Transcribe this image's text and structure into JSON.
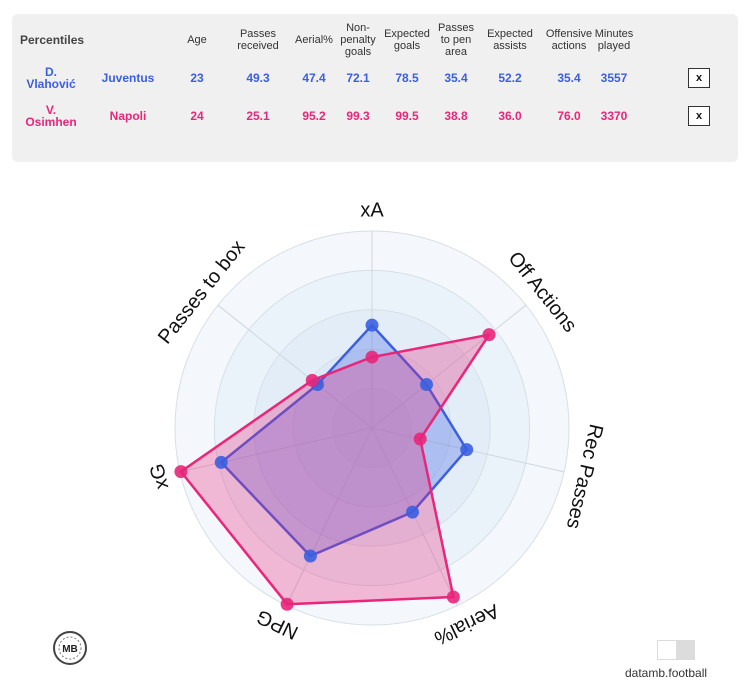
{
  "table": {
    "title": "Percentiles",
    "headers": [
      "Age",
      "Passes\nreceived",
      "Aerial%",
      "Non-\npenalty\ngoals",
      "Expected\ngoals",
      "Passes\nto pen\narea",
      "Expected\nassists",
      "Offensive\nactions",
      "Minutes\nplayed"
    ],
    "rows": [
      {
        "player": "D.\nVlahović",
        "team": "Juventus",
        "values": [
          "23",
          "49.3",
          "47.4",
          "72.1",
          "78.5",
          "35.4",
          "52.2",
          "35.4",
          "3557"
        ],
        "remove": "x",
        "color": "#3a5fe0"
      },
      {
        "player": "V.\nOsimhen",
        "team": "Napoli",
        "values": [
          "24",
          "25.1",
          "95.2",
          "99.3",
          "99.5",
          "38.8",
          "36.0",
          "76.0",
          "3370"
        ],
        "remove": "x",
        "color": "#e8267a"
      }
    ]
  },
  "chart_data": {
    "type": "radar",
    "axes": [
      "xA",
      "Off Actions",
      "Rec Passes",
      "Aerial%",
      "NPG",
      "xG",
      "Passes to box"
    ],
    "range": [
      0,
      100
    ],
    "series": [
      {
        "name": "D. Vlahović",
        "color": "#3a5fe0",
        "values": [
          52.2,
          35.4,
          49.3,
          47.4,
          72.1,
          78.5,
          35.4
        ]
      },
      {
        "name": "V. Osimhen",
        "color": "#e8267a",
        "values": [
          36.0,
          76.0,
          25.1,
          95.2,
          99.3,
          99.5,
          38.8
        ]
      }
    ]
  },
  "footer": {
    "logo_text": "MB",
    "brand": "datamb.football"
  }
}
